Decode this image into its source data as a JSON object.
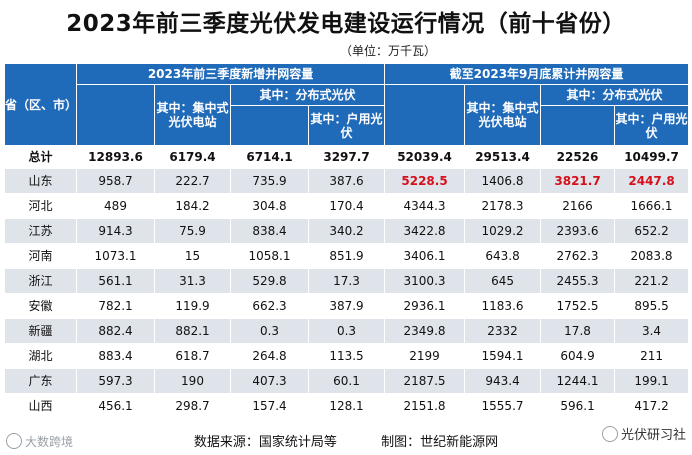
{
  "title": "2023年前三季度光伏发电建设运行情况（前十省份）",
  "unit": "（单位：万千瓦）",
  "headers": {
    "province": "省（区、市）",
    "group_new": "2023年前三季度新增并网容量",
    "group_cum": "截至2023年9月底累计并网容量",
    "central": "其中：集中式光伏电站",
    "distributed": "其中：分布式光伏",
    "household": "其中：户用光伏"
  },
  "total": {
    "label": "总计",
    "values": [
      "12893.6",
      "6179.4",
      "6714.1",
      "3297.7",
      "52039.4",
      "29513.4",
      "22526",
      "10499.7"
    ]
  },
  "rows": [
    {
      "province": "山东",
      "values": [
        "958.7",
        "222.7",
        "735.9",
        "387.6",
        "5228.5",
        "1406.8",
        "3821.7",
        "2447.8"
      ]
    },
    {
      "province": "河北",
      "values": [
        "489",
        "184.2",
        "304.8",
        "170.4",
        "4344.3",
        "2178.3",
        "2166",
        "1666.1"
      ]
    },
    {
      "province": "江苏",
      "values": [
        "914.3",
        "75.9",
        "838.4",
        "340.2",
        "3422.8",
        "1029.2",
        "2393.6",
        "652.2"
      ]
    },
    {
      "province": "河南",
      "values": [
        "1073.1",
        "15",
        "1058.1",
        "851.9",
        "3406.1",
        "643.8",
        "2762.3",
        "2083.8"
      ]
    },
    {
      "province": "浙江",
      "values": [
        "561.1",
        "31.3",
        "529.8",
        "17.3",
        "3100.3",
        "645",
        "2455.3",
        "221.2"
      ]
    },
    {
      "province": "安徽",
      "values": [
        "782.1",
        "119.9",
        "662.3",
        "387.9",
        "2936.1",
        "1183.6",
        "1752.5",
        "895.5"
      ]
    },
    {
      "province": "新疆",
      "values": [
        "882.4",
        "882.1",
        "0.3",
        "0.3",
        "2349.8",
        "2332",
        "17.8",
        "3.4"
      ]
    },
    {
      "province": "湖北",
      "values": [
        "883.4",
        "618.7",
        "264.8",
        "113.5",
        "2199",
        "1594.1",
        "604.9",
        "211"
      ]
    },
    {
      "province": "广东",
      "values": [
        "597.3",
        "190",
        "407.3",
        "60.1",
        "2187.5",
        "943.4",
        "1244.1",
        "199.1"
      ]
    },
    {
      "province": "山西",
      "values": [
        "456.1",
        "298.7",
        "157.4",
        "128.1",
        "2151.8",
        "1555.7",
        "596.1",
        "417.2"
      ]
    }
  ],
  "footer": {
    "source": "数据来源：国家统计局等",
    "maker": "制图：世纪新能源网"
  },
  "watermark": {
    "left": "大数跨境",
    "right": "光伏研习社"
  },
  "colors": {
    "header_blue": "#1f6ab9",
    "stripe_gray": "#dfe3ea",
    "highlight_red": "#d6101a"
  }
}
